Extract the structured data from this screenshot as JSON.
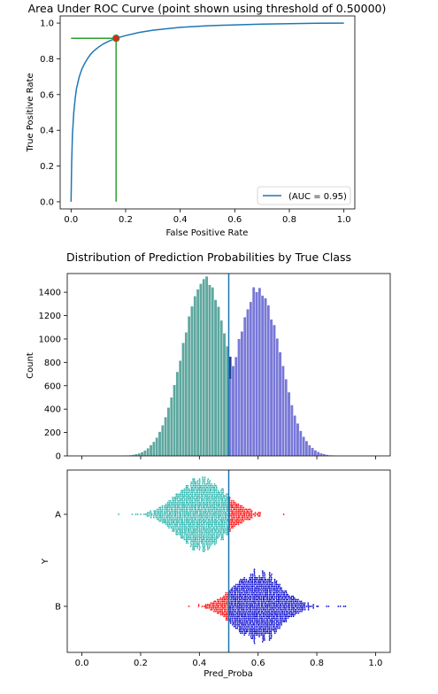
{
  "chart_data": [
    {
      "type": "line",
      "title": "Area Under ROC Curve (point shown using threshold of 0.50000)",
      "xlabel": "False Positive Rate",
      "ylabel": "True Positive Rate",
      "xlim": [
        -0.04,
        1.04
      ],
      "ylim": [
        -0.04,
        1.04
      ],
      "xticks": [
        "0.0",
        "0.2",
        "0.4",
        "0.6",
        "0.8",
        "1.0"
      ],
      "yticks": [
        "0.0",
        "0.2",
        "0.4",
        "0.6",
        "0.8",
        "1.0"
      ],
      "grid": false,
      "legend": {
        "location": "lower right",
        "entries": [
          "(AUC = 0.95)"
        ]
      },
      "series": [
        {
          "name": "(AUC = 0.95)",
          "color": "#1f77b4",
          "x": [
            0,
            0.002,
            0.005,
            0.01,
            0.015,
            0.02,
            0.03,
            0.04,
            0.05,
            0.06,
            0.07,
            0.08,
            0.1,
            0.12,
            0.14,
            0.165,
            0.2,
            0.25,
            0.3,
            0.35,
            0.4,
            0.5,
            0.6,
            0.7,
            0.8,
            0.9,
            1.0
          ],
          "y": [
            0,
            0.22,
            0.38,
            0.5,
            0.58,
            0.635,
            0.7,
            0.745,
            0.775,
            0.8,
            0.822,
            0.84,
            0.865,
            0.885,
            0.9,
            0.915,
            0.93,
            0.948,
            0.96,
            0.968,
            0.976,
            0.985,
            0.99,
            0.994,
            0.997,
            0.999,
            1.0
          ]
        }
      ],
      "threshold_point": {
        "x": 0.165,
        "y": 0.915,
        "color": "#d62728",
        "guide_color": "#2ca02c"
      }
    },
    {
      "type": "bar",
      "title": "Distribution of Prediction Probabilities by True Class",
      "xlabel": "",
      "ylabel": "Count",
      "xlim": [
        -0.05,
        1.05
      ],
      "ylim": [
        0,
        1560
      ],
      "yticks": [
        "0",
        "200",
        "400",
        "600",
        "800",
        "1000",
        "1200",
        "1400"
      ],
      "bin_width": 0.01,
      "threshold_line": {
        "x": 0.5,
        "color": "#1f77b4"
      },
      "series": [
        {
          "name": "A",
          "color": "#5fa8a0",
          "peak": 1500,
          "center": 0.42,
          "sd": 0.078,
          "range": [
            0.12,
            0.72
          ],
          "region": "below-threshold"
        },
        {
          "name": "A",
          "color": "#22408e",
          "peak": 1500,
          "center": 0.42,
          "sd": 0.078,
          "range": [
            0.12,
            0.72
          ],
          "region": "above-threshold"
        },
        {
          "name": "B",
          "color": "#7878d8",
          "peak": 1430,
          "center": 0.6,
          "sd": 0.075,
          "range": [
            0.3,
            0.94
          ],
          "region": "above-threshold"
        },
        {
          "name": "B",
          "color": "#22408e",
          "peak": 1430,
          "center": 0.6,
          "sd": 0.075,
          "range": [
            0.3,
            0.94
          ],
          "region": "below-threshold"
        }
      ]
    },
    {
      "type": "scatter",
      "title": "",
      "xlabel": "Pred_Proba",
      "ylabel": "Y",
      "xlim": [
        -0.05,
        1.05
      ],
      "xticks": [
        "0.0",
        "0.2",
        "0.4",
        "0.6",
        "0.8",
        "1.0"
      ],
      "categories": [
        "A",
        "B"
      ],
      "threshold_line": {
        "x": 0.5,
        "color": "#1f77b4"
      },
      "series": [
        {
          "category": "A",
          "center": 0.41,
          "sd": 0.078,
          "range": [
            0.12,
            0.69
          ],
          "color_below": "#20b2aa",
          "color_above": "#ff0000"
        },
        {
          "category": "B",
          "center": 0.6,
          "sd": 0.075,
          "range": [
            0.33,
            0.9
          ],
          "color_below": "#ff0000",
          "color_above": "#0000cd"
        }
      ]
    }
  ]
}
